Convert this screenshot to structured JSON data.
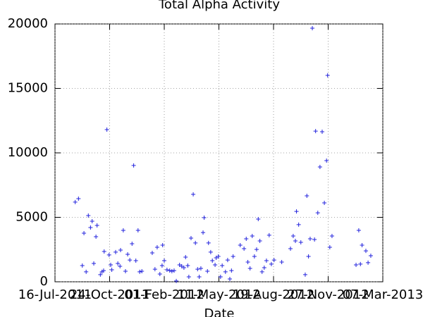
{
  "chart_data": {
    "type": "scatter",
    "title": "Total Alpha Activity",
    "x_label": "Date",
    "color": "#2222dd",
    "grid": true,
    "xlim": [
      "2011-07-16",
      "2013-03-07"
    ],
    "xticks": [
      {
        "value": "2011-07-16",
        "label": "16-Jul-2011"
      },
      {
        "value": "2011-10-24",
        "label": "24-Oct-2011"
      },
      {
        "value": "2012-02-01",
        "label": "01-Feb-2012"
      },
      {
        "value": "2012-05-11",
        "label": "11-May-2012"
      },
      {
        "value": "2012-08-19",
        "label": "19-Aug-2012"
      },
      {
        "value": "2012-11-27",
        "label": "27-Nov-2012"
      },
      {
        "value": "2013-03-07",
        "label": "07-Mar-2013"
      }
    ],
    "ylim": [
      0,
      20000
    ],
    "yticks": [
      0,
      5000,
      10000,
      15000,
      20000
    ],
    "x": [
      "2011-08-22",
      "2011-08-28",
      "2011-09-04",
      "2011-09-07",
      "2011-09-11",
      "2011-09-15",
      "2011-09-19",
      "2011-09-22",
      "2011-09-25",
      "2011-09-29",
      "2011-10-01",
      "2011-10-07",
      "2011-10-10",
      "2011-10-13",
      "2011-10-14",
      "2011-10-19",
      "2011-10-23",
      "2011-10-26",
      "2011-10-28",
      "2011-11-04",
      "2011-11-08",
      "2011-11-12",
      "2011-11-13",
      "2011-11-18",
      "2011-11-22",
      "2011-11-26",
      "2011-11-30",
      "2011-12-04",
      "2011-12-07",
      "2011-12-11",
      "2011-12-15",
      "2011-12-18",
      "2011-12-22",
      "2012-01-10",
      "2012-01-15",
      "2012-01-19",
      "2012-01-24",
      "2012-01-28",
      "2012-01-29",
      "2012-02-01",
      "2012-02-06",
      "2012-02-11",
      "2012-02-15",
      "2012-02-19",
      "2012-02-23",
      "2012-02-29",
      "2012-03-04",
      "2012-03-08",
      "2012-03-11",
      "2012-03-15",
      "2012-03-17",
      "2012-03-21",
      "2012-03-25",
      "2012-03-29",
      "2012-04-02",
      "2012-04-05",
      "2012-04-08",
      "2012-04-12",
      "2012-04-14",
      "2012-04-20",
      "2012-04-22",
      "2012-04-26",
      "2012-04-29",
      "2012-05-04",
      "2012-05-06",
      "2012-05-10",
      "2012-05-14",
      "2012-05-17",
      "2012-05-23",
      "2012-05-27",
      "2012-05-31",
      "2012-06-03",
      "2012-06-06",
      "2012-06-19",
      "2012-06-26",
      "2012-06-30",
      "2012-07-03",
      "2012-07-07",
      "2012-07-11",
      "2012-07-15",
      "2012-07-19",
      "2012-07-22",
      "2012-07-25",
      "2012-07-29",
      "2012-08-02",
      "2012-08-06",
      "2012-08-11",
      "2012-08-15",
      "2012-08-20",
      "2012-09-03",
      "2012-09-19",
      "2012-09-24",
      "2012-09-28",
      "2012-09-30",
      "2012-10-04",
      "2012-10-08",
      "2012-10-16",
      "2012-10-19",
      "2012-10-22",
      "2012-10-25",
      "2012-10-29",
      "2012-11-02",
      "2012-11-04",
      "2012-11-08",
      "2012-11-12",
      "2012-11-16",
      "2012-11-20",
      "2012-11-24",
      "2012-11-26",
      "2012-11-30",
      "2012-12-04",
      "2013-01-17",
      "2013-01-22",
      "2013-01-25",
      "2013-01-28",
      "2013-02-04",
      "2013-02-08",
      "2013-02-13"
    ],
    "values": [
      6180,
      6450,
      1260,
      3770,
      770,
      5140,
      4210,
      4700,
      1420,
      3500,
      4370,
      550,
      770,
      870,
      2350,
      11800,
      2080,
      1310,
      930,
      2300,
      1420,
      1200,
      2460,
      3990,
      820,
      2130,
      1690,
      2950,
      9020,
      1640,
      3990,
      770,
      820,
      2240,
      980,
      2680,
      600,
      1260,
      2840,
      1640,
      930,
      870,
      820,
      870,
      60,
      1310,
      1200,
      1090,
      1910,
      1260,
      380,
      3390,
      6780,
      3010,
      980,
      380,
      1040,
      3820,
      4970,
      820,
      3010,
      2300,
      1640,
      1310,
      1860,
      1970,
      380,
      1260,
      770,
      1690,
      220,
      870,
      1970,
      2840,
      2570,
      3330,
      1530,
      1040,
      3550,
      1970,
      2510,
      4860,
      3170,
      770,
      1090,
      1640,
      3610,
      1370,
      1690,
      1530,
      2570,
      3550,
      3170,
      5460,
      4430,
      3060,
      550,
      6670,
      1970,
      3330,
      19670,
      3280,
      11690,
      5350,
      8910,
      11640,
      6120,
      9400,
      16010,
      2680,
      3550,
      1310,
      3990,
      1370,
      2840,
      2400,
      1480,
      2020
    ]
  }
}
